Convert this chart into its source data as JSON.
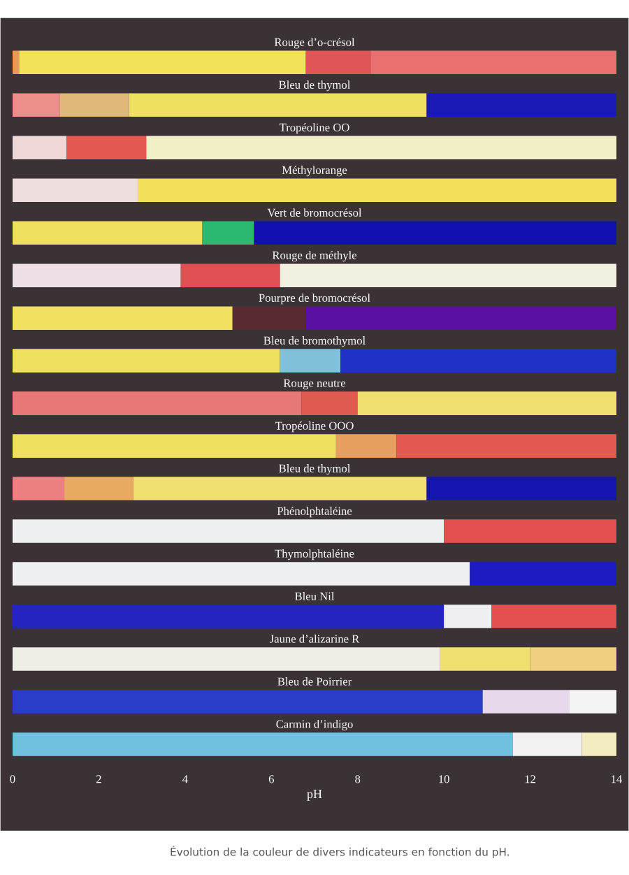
{
  "chart_data": {
    "type": "bar",
    "orientation": "horizontal",
    "stacked": true,
    "categories": [
      "Rouge d’o-crésol",
      "Bleu de thymol",
      "Tropéoline OO",
      "Méthylorange",
      "Vert de bromocrésol",
      "Rouge de méthyle",
      "Pourpre de bromocrésol",
      "Bleu de bromothymol",
      "Rouge neutre",
      "Tropéoline OOO",
      "Bleu de thymol",
      "Phénolphtaléine",
      "Thymolphtaléine",
      "Bleu Nil",
      "Jaune d’alizarine R",
      "Bleu de Poirrier",
      "Carmin d’indigo"
    ],
    "series": [
      {
        "values": [
          0.15,
          1.1,
          1.25,
          2.9,
          4.4,
          3.9,
          5.1,
          6.2,
          6.7,
          7.5,
          1.2,
          10.0,
          10.6,
          10.0,
          9.9,
          10.9,
          11.6
        ],
        "colors": [
          "#e89a5a",
          "#ec8f8a",
          "#f0d8d8",
          "#efdede",
          "#f0e060",
          "#eee0e6",
          "#f2e060",
          "#f0e060",
          "#e87878",
          "#f0e060",
          "#ec8080",
          "#eef0f2",
          "#eef0f2",
          "#2424c0",
          "#eeeee6",
          "#2a3cc8",
          "#70c0e0"
        ]
      },
      {
        "values": [
          6.65,
          1.6,
          1.85,
          11.1,
          1.2,
          2.3,
          1.7,
          1.4,
          1.3,
          1.4,
          1.6,
          4.0,
          3.4,
          1.1,
          2.1,
          2.0,
          1.6
        ],
        "colors": [
          "#f2e25a",
          "#e0b878",
          "#e45a50",
          "#f2e05a",
          "#2db870",
          "#e05050",
          "#5a2a30",
          "#80c0d8",
          "#e05a50",
          "#e8a060",
          "#e8aa60",
          "#e45050",
          "#1c1cc0",
          "#f0f0f2",
          "#f0e070",
          "#e8d8ec",
          "#f2f2f2"
        ]
      },
      {
        "values": [
          1.5,
          6.9,
          10.9,
          null,
          8.4,
          7.8,
          7.2,
          6.4,
          6.0,
          5.1,
          6.8,
          null,
          null,
          2.9,
          2.0,
          1.1,
          0.8
        ],
        "colors": [
          "#e05555",
          "#f0e060",
          "#f2f0c8",
          null,
          "#1010b0",
          "#f2f0e0",
          "#5a10a0",
          "#2030c8",
          "#f0e070",
          "#e45a50",
          "#f0e070",
          null,
          null,
          "#e45050",
          "#f0d080",
          "#f4f4f4",
          "#f2ecc0"
        ]
      },
      {
        "values": [
          5.7,
          4.4,
          null,
          null,
          null,
          null,
          null,
          null,
          null,
          null,
          4.4,
          null,
          null,
          null,
          null,
          null,
          null
        ],
        "colors": [
          "#e87070",
          "#1a1ab8",
          null,
          null,
          null,
          null,
          null,
          null,
          null,
          null,
          "#1414b0",
          null,
          null,
          null,
          null,
          null,
          null
        ]
      }
    ],
    "xlim": [
      0,
      14
    ],
    "xticks": [
      0,
      2,
      4,
      6,
      8,
      10,
      12,
      14
    ],
    "xlabel": "pH",
    "annotations": [
      "Évolution de la couleur de divers indicateurs en fonction du pH."
    ]
  }
}
